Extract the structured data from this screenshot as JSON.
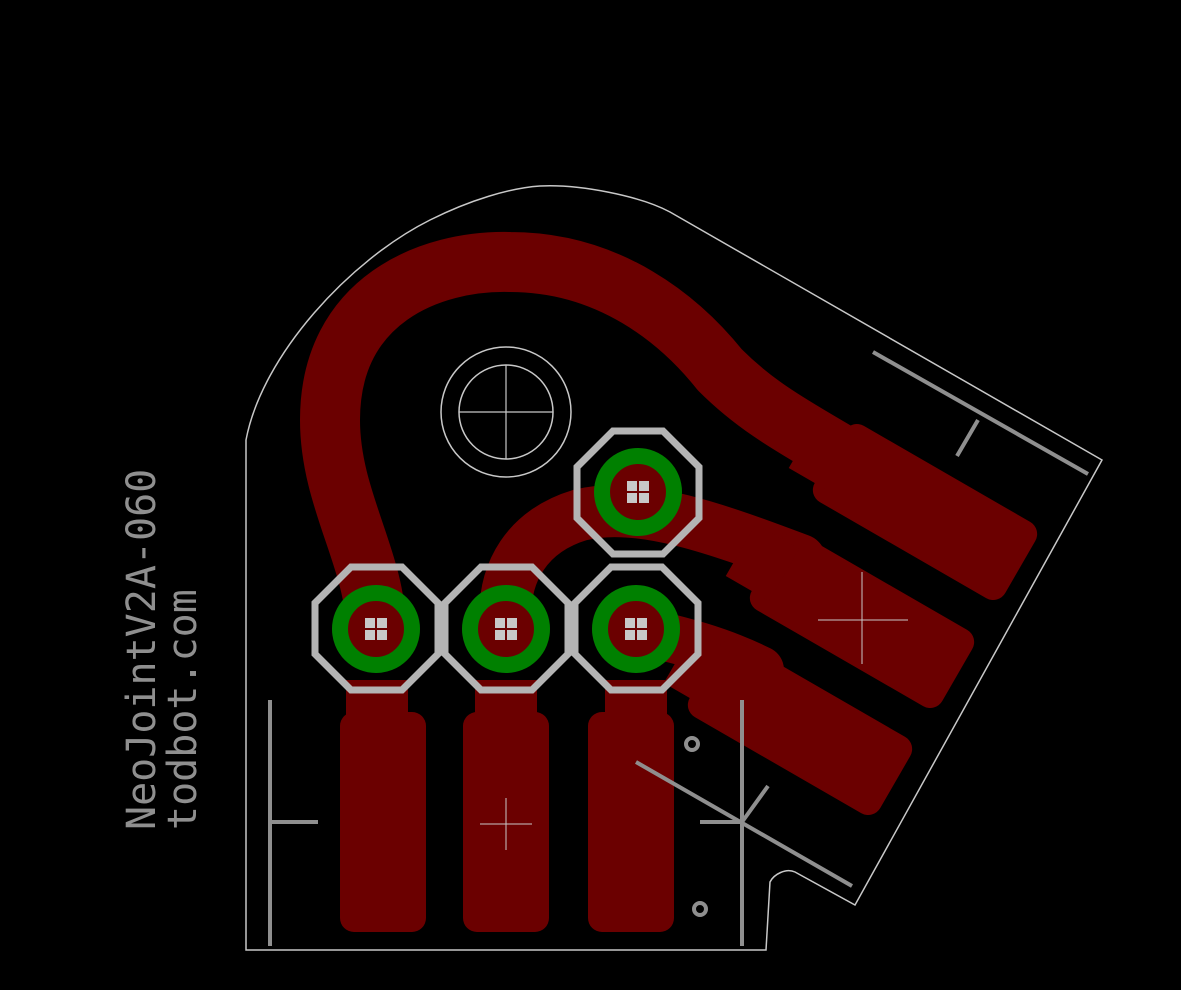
{
  "board": {
    "colors": {
      "background": "#000000",
      "copper": "#6b0000",
      "silkscreen": "#8f8f8f",
      "outline": "#c8c8c8",
      "pad_ring": "#006e00",
      "drill": "#c8c8c8"
    },
    "labels": {
      "part_name": "NeoJointV2A-060",
      "author": "todbot.com"
    },
    "through_hole_pads": [
      "pad-left",
      "pad-middle",
      "pad-right",
      "pad-top"
    ],
    "smd_pads_vertical": 3,
    "smd_pads_angled": 3
  }
}
